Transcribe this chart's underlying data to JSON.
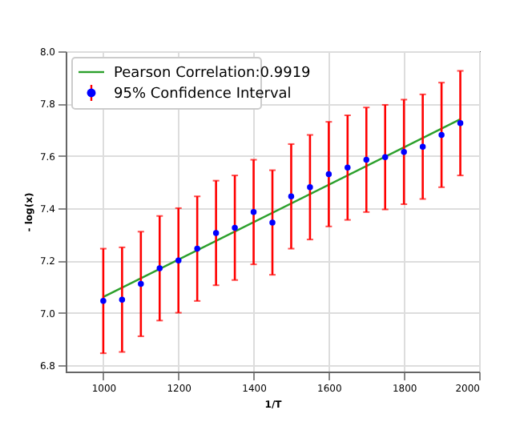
{
  "chart_data": {
    "type": "scatter",
    "xlabel": "1/T",
    "ylabel": "- log(x)",
    "x": [
      1000,
      1050,
      1100,
      1150,
      1200,
      1250,
      1300,
      1350,
      1400,
      1450,
      1500,
      1550,
      1600,
      1650,
      1700,
      1750,
      1800,
      1850,
      1900,
      1950
    ],
    "series": [
      {
        "name": "Pearson Correlation:0.9919",
        "type": "line",
        "color": "#2ca02c",
        "x": [
          1000,
          1950
        ],
        "values": [
          7.06,
          7.74
        ]
      },
      {
        "name": "95% Confidence Interval",
        "color": "#0000ff",
        "marker": "circle",
        "values": [
          7.045,
          7.05,
          7.11,
          7.17,
          7.2,
          7.245,
          7.305,
          7.325,
          7.385,
          7.345,
          7.445,
          7.48,
          7.53,
          7.555,
          7.585,
          7.595,
          7.615,
          7.635,
          7.68,
          7.725
        ],
        "errors": [
          0.2,
          0.2,
          0.2,
          0.2,
          0.2,
          0.2,
          0.2,
          0.2,
          0.2,
          0.2,
          0.2,
          0.2,
          0.2,
          0.2,
          0.2,
          0.2,
          0.2,
          0.2,
          0.2,
          0.2
        ]
      }
    ],
    "xlim": [
      900,
      2000
    ],
    "xticks": [
      1000,
      1200,
      1400,
      1600,
      1800,
      2000
    ],
    "ylim": [
      6.775,
      8.0
    ],
    "yticks": [
      {
        "value": 6.8,
        "label": "6.8"
      },
      {
        "value": 7.0,
        "label": "7.0"
      },
      {
        "value": 7.2,
        "label": "7.2"
      },
      {
        "value": 7.4,
        "label": "7.4"
      },
      {
        "value": 7.6,
        "label": "7.6"
      },
      {
        "value": 7.8,
        "label": "7.8"
      },
      {
        "value": 8.0,
        "label": "8.0"
      }
    ],
    "grid": true,
    "legend": "top left"
  }
}
